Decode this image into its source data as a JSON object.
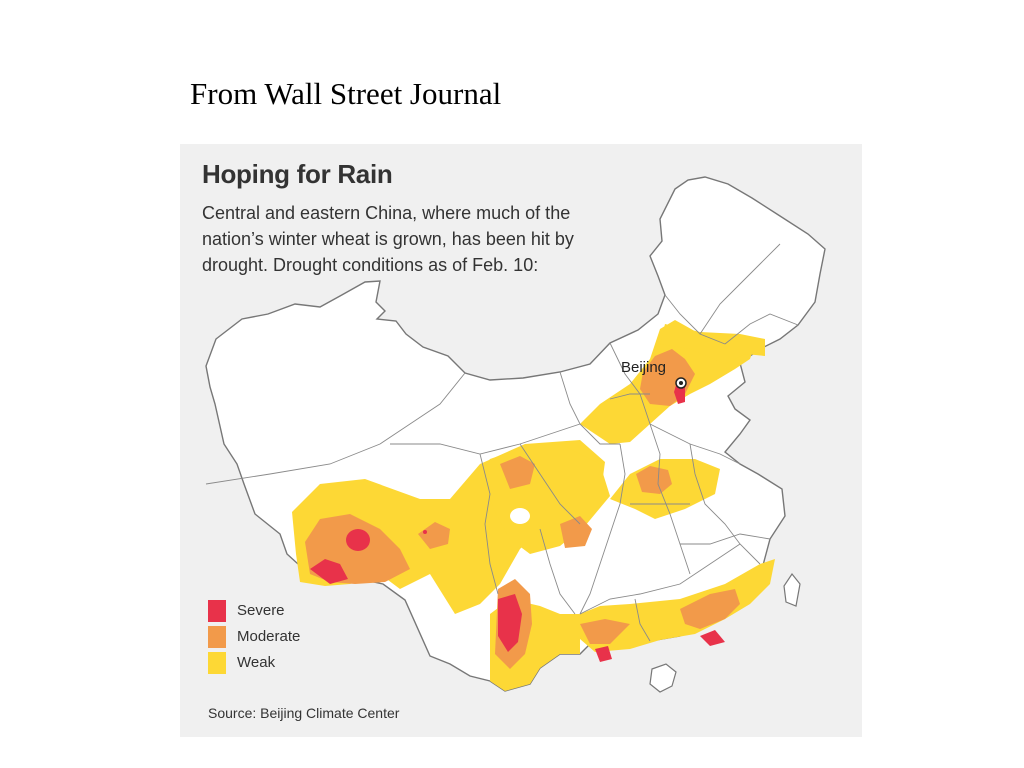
{
  "slide": {
    "caption": "From Wall Street Journal"
  },
  "figure": {
    "title": "Hoping for Rain",
    "description_lines": [
      "Central and eastern China, where much of the",
      "nation’s winter wheat is grown, has been hit by",
      "drought. Drought conditions as of Feb. 10:"
    ],
    "city_label": "Beijing",
    "legend": [
      {
        "label": "Severe",
        "color": "#e8324a"
      },
      {
        "label": "Moderate",
        "color": "#f29a4a"
      },
      {
        "label": "Weak",
        "color": "#fdd835"
      }
    ],
    "source": "Source: Beijing Climate Center"
  },
  "colors": {
    "figure_background": "#f0f0f0",
    "land": "#ffffff",
    "borders": "#888888",
    "severe": "#e8324a",
    "moderate": "#f29a4a",
    "weak": "#fdd835"
  }
}
